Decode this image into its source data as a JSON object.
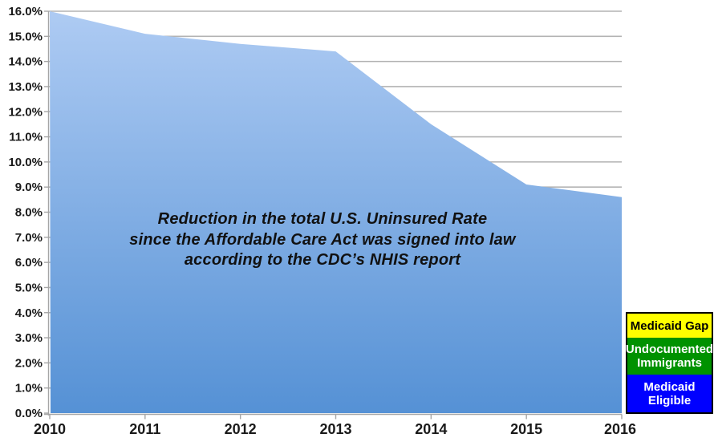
{
  "chart_data": {
    "type": "area",
    "categories": [
      "2010",
      "2011",
      "2012",
      "2013",
      "2014",
      "2015",
      "2016"
    ],
    "values": [
      16.0,
      15.1,
      14.7,
      14.4,
      11.5,
      9.1,
      8.6
    ],
    "series_name": "Total U.S. uninsured rate",
    "xlabel": "",
    "ylabel": "",
    "ylim": [
      0,
      16
    ],
    "y_tick_step": 1.0,
    "y_tick_labels": [
      "0.0%",
      "1.0%",
      "2.0%",
      "3.0%",
      "4.0%",
      "5.0%",
      "6.0%",
      "7.0%",
      "8.0%",
      "9.0%",
      "10.0%",
      "11.0%",
      "12.0%",
      "13.0%",
      "14.0%",
      "15.0%",
      "16.0%"
    ],
    "grid": "horizontal",
    "annotation": {
      "lines": [
        "Reduction in the total U.S. Uninsured Rate",
        "since the Affordable Care Act was signed into law",
        "according to the CDC’s NHIS report"
      ]
    },
    "colors": {
      "area_gradient_top": "#AECBF3",
      "area_gradient_bottom": "#5591D5",
      "gridline": "#B3B3B3",
      "axis": "#A6A6A6",
      "tick_label": "#1A1A1A"
    },
    "legend": {
      "position": "bottom-right",
      "entries": [
        {
          "label": "Medicaid Gap",
          "bg": "#FFFF00",
          "fg": "#000000"
        },
        {
          "label": "Undocumented Immigrants",
          "bg": "#009200",
          "fg": "#FFFFFF"
        },
        {
          "label": "Medicaid Eligible",
          "bg": "#0000FF",
          "fg": "#FFFFFF"
        }
      ]
    }
  }
}
